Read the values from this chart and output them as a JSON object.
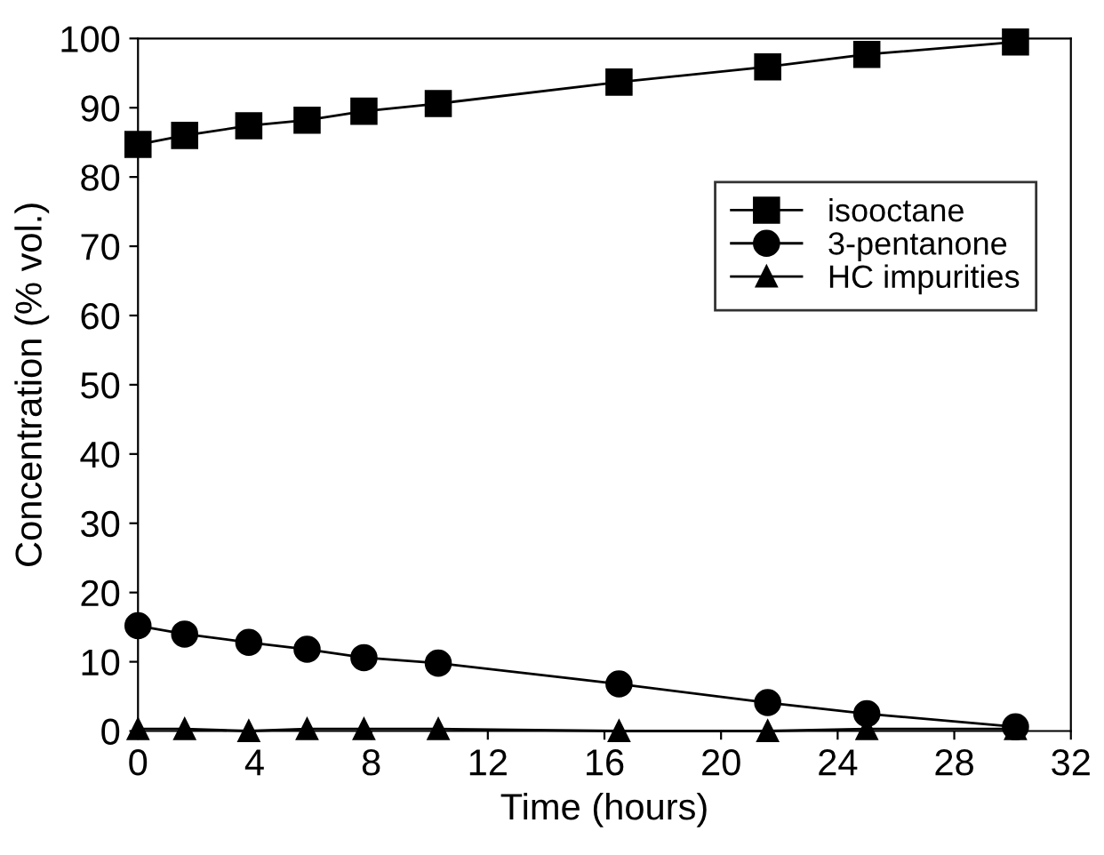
{
  "chart_data": {
    "type": "line",
    "xlabel": "Time (hours)",
    "ylabel": "Concentration (% vol.)",
    "x": [
      0,
      1.6,
      3.8,
      5.8,
      7.75,
      10.3,
      16.5,
      21.6,
      25.0,
      30.1
    ],
    "series": [
      {
        "name": "isooctane",
        "color": "#000000",
        "marker": "square",
        "values": [
          84.7,
          86.0,
          87.4,
          88.2,
          89.5,
          90.6,
          93.7,
          95.9,
          97.7,
          99.5
        ]
      },
      {
        "name": "3-pentanone",
        "color": "#000000",
        "marker": "circle",
        "values": [
          15.2,
          14.0,
          12.8,
          11.8,
          10.6,
          9.8,
          6.8,
          4.1,
          2.5,
          0.6
        ]
      },
      {
        "name": "HC impurities",
        "color": "#000000",
        "marker": "triangle",
        "values": [
          0.3,
          0.3,
          0,
          0.3,
          0.3,
          0.3,
          0,
          0,
          0.3,
          0.3
        ]
      }
    ],
    "xlim": [
      0,
      32
    ],
    "xticks": [
      0,
      4,
      8,
      12,
      16,
      20,
      24,
      28,
      32
    ],
    "ylim": [
      0,
      100
    ],
    "yticks": [
      0,
      10,
      20,
      30,
      40,
      50,
      60,
      70,
      80,
      90,
      100
    ],
    "grid": false,
    "legend": "right",
    "line_style": "solid"
  }
}
